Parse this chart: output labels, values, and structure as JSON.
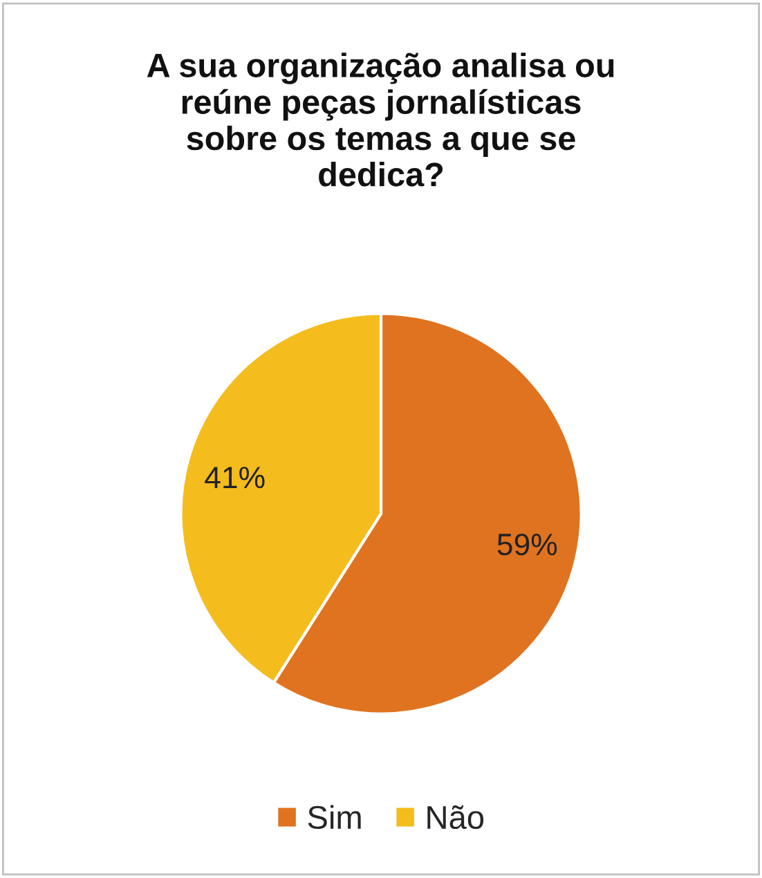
{
  "chart_data": {
    "type": "pie",
    "title": "A sua organização analisa ou\nreúne peças jornalísticas\nsobre os temas a que se\ndedica?",
    "categories": [
      "Sim",
      "Não"
    ],
    "values": [
      59,
      41
    ],
    "colors": [
      "#e07320",
      "#f4bc1c"
    ],
    "value_labels": [
      "59%",
      "41%"
    ],
    "legend": "bottom"
  }
}
